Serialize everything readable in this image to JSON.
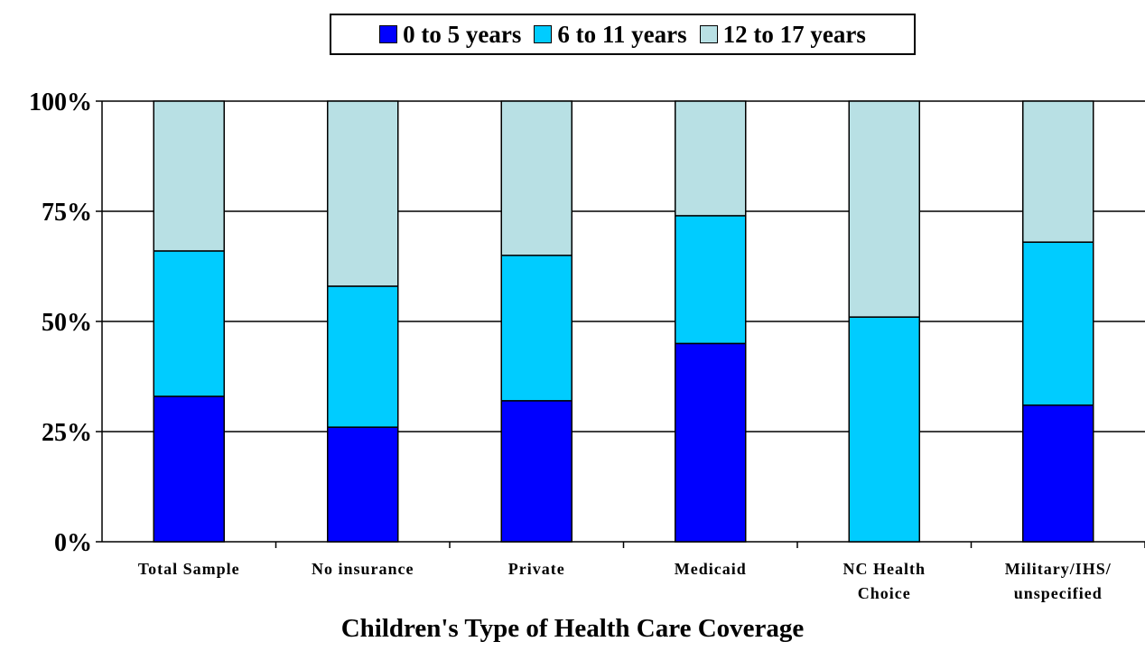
{
  "chart_data": {
    "type": "bar",
    "stacked": true,
    "title": "",
    "xlabel": "Children's Type of Health Care Coverage",
    "ylabel": "",
    "ylim": [
      0,
      100
    ],
    "yticks": [
      "0%",
      "25%",
      "50%",
      "75%",
      "100%"
    ],
    "ytick_values": [
      0,
      25,
      50,
      75,
      100
    ],
    "grid": true,
    "legend_position": "top-center",
    "categories": [
      [
        "Total Sample"
      ],
      [
        "No insurance"
      ],
      [
        "Private"
      ],
      [
        "Medicaid"
      ],
      [
        "NC Health",
        "Choice"
      ],
      [
        "Military/IHS/",
        "unspecified"
      ]
    ],
    "series": [
      {
        "name": "0 to 5 years",
        "color": "#0000ff",
        "values": [
          33,
          26,
          32,
          45,
          0,
          31
        ]
      },
      {
        "name": "6 to 11 years",
        "color": "#00ccff",
        "values": [
          33,
          32,
          33,
          29,
          51,
          37
        ]
      },
      {
        "name": "12 to 17 years",
        "color": "#b8e0e4",
        "values": [
          34,
          42,
          35,
          26,
          49,
          32
        ]
      }
    ]
  }
}
